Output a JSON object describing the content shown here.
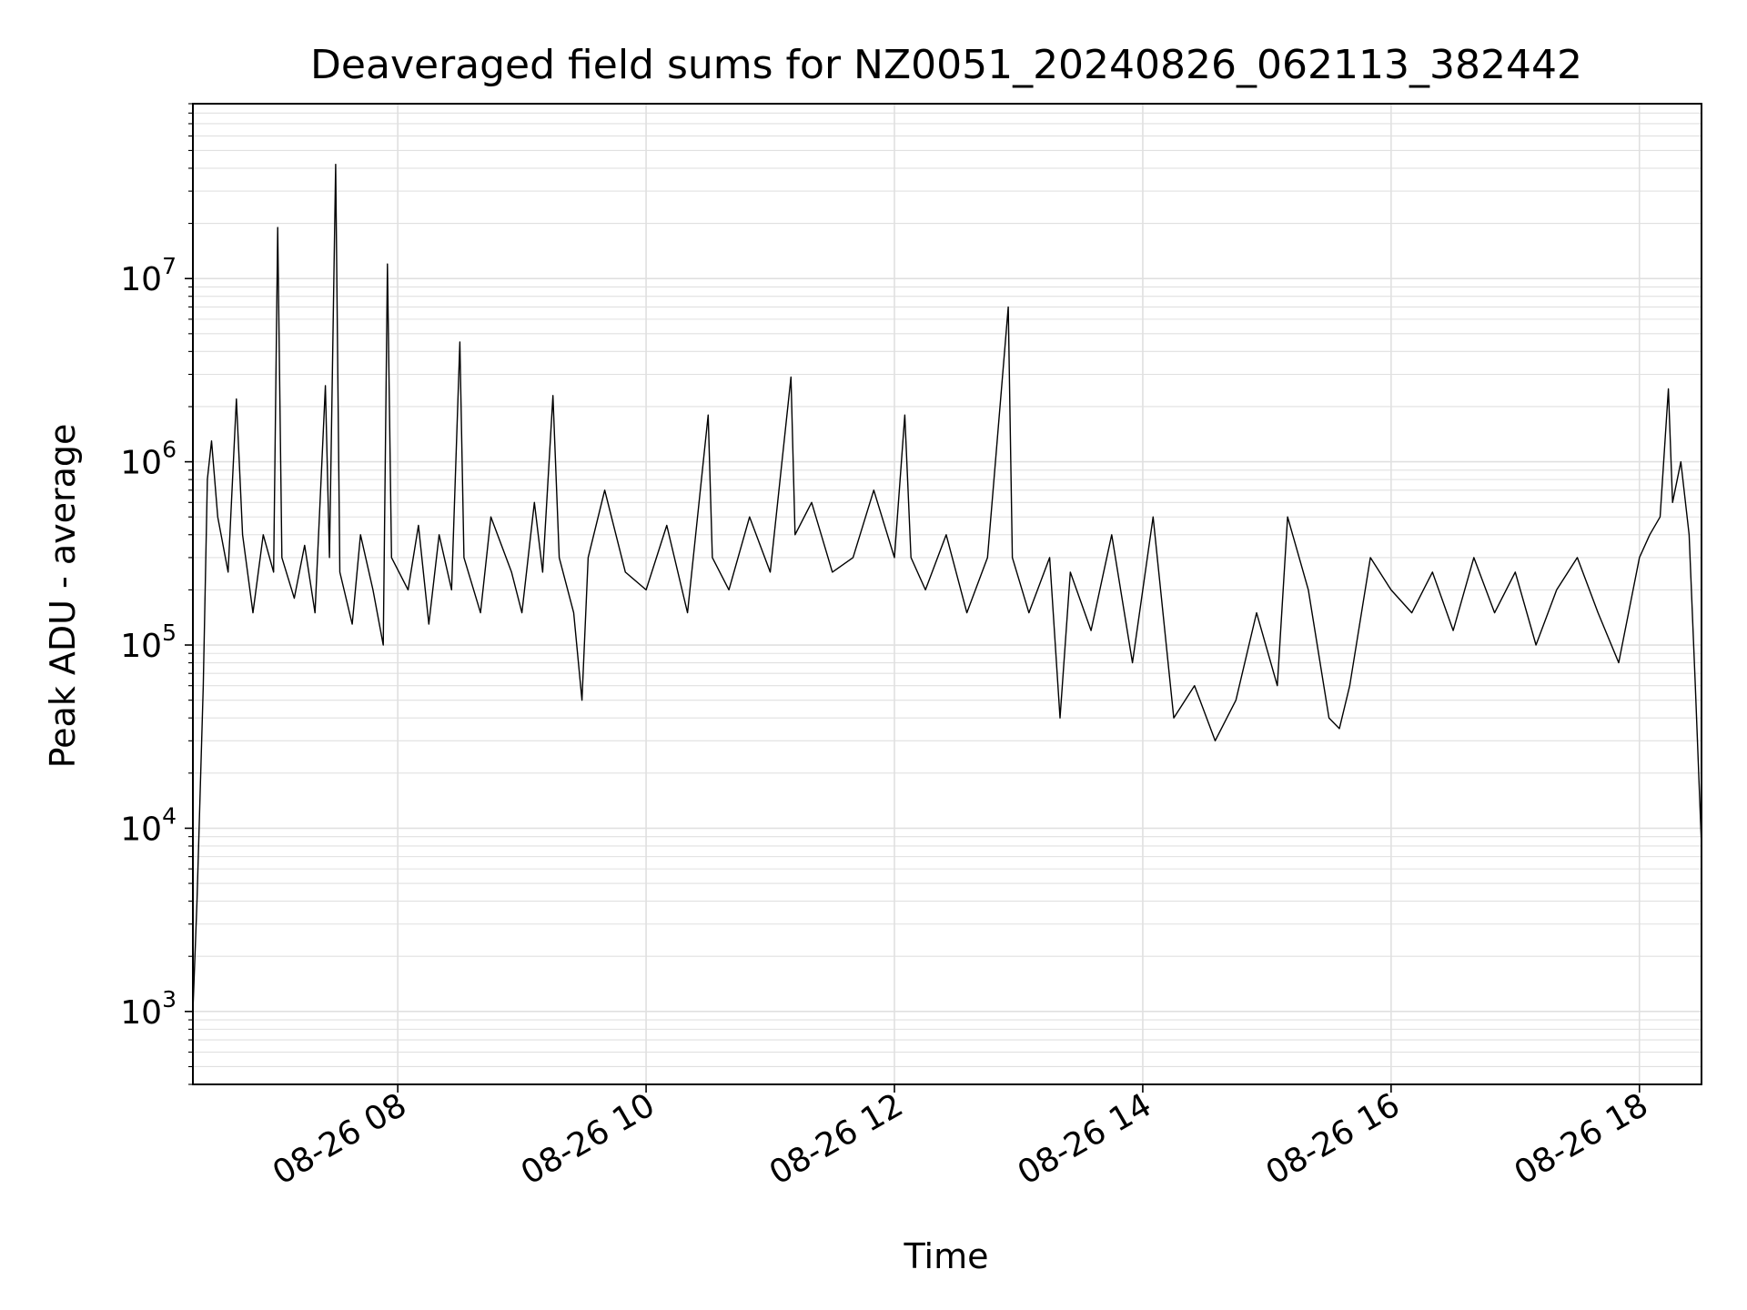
{
  "chart_data": {
    "type": "line",
    "title": "Deaveraged field sums for NZ0051_20240826_062113_382442",
    "xlabel": "Time",
    "ylabel": "Peak ADU - average",
    "x_is_time": true,
    "xlim": [
      "2024-08-26 06:21",
      "2024-08-26 18:30"
    ],
    "ylim": [
      400,
      90000000
    ],
    "y_scale": "log",
    "grid": true,
    "grid_minor": true,
    "colors": {
      "line": "#000000",
      "grid": "#e0e0e0",
      "axes": "#000000"
    },
    "x_ticks": [
      {
        "label": "08-26 08",
        "value": "2024-08-26 08:00"
      },
      {
        "label": "08-26 10",
        "value": "2024-08-26 10:00"
      },
      {
        "label": "08-26 12",
        "value": "2024-08-26 12:00"
      },
      {
        "label": "08-26 14",
        "value": "2024-08-26 14:00"
      },
      {
        "label": "08-26 16",
        "value": "2024-08-26 16:00"
      },
      {
        "label": "08-26 18",
        "value": "2024-08-26 18:00"
      }
    ],
    "y_ticks": [
      {
        "base": "10",
        "exp": "3",
        "value": 1000
      },
      {
        "base": "10",
        "exp": "4",
        "value": 10000
      },
      {
        "base": "10",
        "exp": "5",
        "value": 100000
      },
      {
        "base": "10",
        "exp": "6",
        "value": 1000000
      },
      {
        "base": "10",
        "exp": "7",
        "value": 10000000
      }
    ],
    "series": [
      {
        "points": [
          [
            "2024-08-26 06:21",
            1000
          ],
          [
            "2024-08-26 06:23",
            4000
          ],
          [
            "2024-08-26 06:26",
            60000
          ],
          [
            "2024-08-26 06:28",
            800000
          ],
          [
            "2024-08-26 06:30",
            1300000
          ],
          [
            "2024-08-26 06:33",
            500000
          ],
          [
            "2024-08-26 06:38",
            250000
          ],
          [
            "2024-08-26 06:42",
            2200000
          ],
          [
            "2024-08-26 06:45",
            400000
          ],
          [
            "2024-08-26 06:50",
            150000
          ],
          [
            "2024-08-26 06:55",
            400000
          ],
          [
            "2024-08-26 07:00",
            250000
          ],
          [
            "2024-08-26 07:02",
            19000000
          ],
          [
            "2024-08-26 07:04",
            300000
          ],
          [
            "2024-08-26 07:10",
            180000
          ],
          [
            "2024-08-26 07:15",
            350000
          ],
          [
            "2024-08-26 07:20",
            150000
          ],
          [
            "2024-08-26 07:25",
            2600000
          ],
          [
            "2024-08-26 07:27",
            300000
          ],
          [
            "2024-08-26 07:30",
            42000000
          ],
          [
            "2024-08-26 07:32",
            250000
          ],
          [
            "2024-08-26 07:38",
            130000
          ],
          [
            "2024-08-26 07:42",
            400000
          ],
          [
            "2024-08-26 07:48",
            200000
          ],
          [
            "2024-08-26 07:53",
            100000
          ],
          [
            "2024-08-26 07:55",
            12000000
          ],
          [
            "2024-08-26 07:57",
            300000
          ],
          [
            "2024-08-26 08:05",
            200000
          ],
          [
            "2024-08-26 08:10",
            450000
          ],
          [
            "2024-08-26 08:15",
            130000
          ],
          [
            "2024-08-26 08:20",
            400000
          ],
          [
            "2024-08-26 08:26",
            200000
          ],
          [
            "2024-08-26 08:30",
            4500000
          ],
          [
            "2024-08-26 08:32",
            300000
          ],
          [
            "2024-08-26 08:40",
            150000
          ],
          [
            "2024-08-26 08:45",
            500000
          ],
          [
            "2024-08-26 08:55",
            250000
          ],
          [
            "2024-08-26 09:00",
            150000
          ],
          [
            "2024-08-26 09:06",
            600000
          ],
          [
            "2024-08-26 09:10",
            250000
          ],
          [
            "2024-08-26 09:15",
            2300000
          ],
          [
            "2024-08-26 09:18",
            300000
          ],
          [
            "2024-08-26 09:25",
            150000
          ],
          [
            "2024-08-26 09:29",
            50000
          ],
          [
            "2024-08-26 09:32",
            300000
          ],
          [
            "2024-08-26 09:40",
            700000
          ],
          [
            "2024-08-26 09:50",
            250000
          ],
          [
            "2024-08-26 10:00",
            200000
          ],
          [
            "2024-08-26 10:10",
            450000
          ],
          [
            "2024-08-26 10:20",
            150000
          ],
          [
            "2024-08-26 10:30",
            1800000
          ],
          [
            "2024-08-26 10:32",
            300000
          ],
          [
            "2024-08-26 10:40",
            200000
          ],
          [
            "2024-08-26 10:50",
            500000
          ],
          [
            "2024-08-26 11:00",
            250000
          ],
          [
            "2024-08-26 11:10",
            2900000
          ],
          [
            "2024-08-26 11:12",
            400000
          ],
          [
            "2024-08-26 11:20",
            600000
          ],
          [
            "2024-08-26 11:30",
            250000
          ],
          [
            "2024-08-26 11:40",
            300000
          ],
          [
            "2024-08-26 11:50",
            700000
          ],
          [
            "2024-08-26 12:00",
            300000
          ],
          [
            "2024-08-26 12:05",
            1800000
          ],
          [
            "2024-08-26 12:08",
            300000
          ],
          [
            "2024-08-26 12:15",
            200000
          ],
          [
            "2024-08-26 12:25",
            400000
          ],
          [
            "2024-08-26 12:35",
            150000
          ],
          [
            "2024-08-26 12:45",
            300000
          ],
          [
            "2024-08-26 12:55",
            7000000
          ],
          [
            "2024-08-26 12:57",
            300000
          ],
          [
            "2024-08-26 13:05",
            150000
          ],
          [
            "2024-08-26 13:15",
            300000
          ],
          [
            "2024-08-26 13:20",
            40000
          ],
          [
            "2024-08-26 13:25",
            250000
          ],
          [
            "2024-08-26 13:35",
            120000
          ],
          [
            "2024-08-26 13:45",
            400000
          ],
          [
            "2024-08-26 13:55",
            80000
          ],
          [
            "2024-08-26 14:05",
            500000
          ],
          [
            "2024-08-26 14:15",
            40000
          ],
          [
            "2024-08-26 14:25",
            60000
          ],
          [
            "2024-08-26 14:35",
            30000
          ],
          [
            "2024-08-26 14:45",
            50000
          ],
          [
            "2024-08-26 14:55",
            150000
          ],
          [
            "2024-08-26 15:05",
            60000
          ],
          [
            "2024-08-26 15:10",
            500000
          ],
          [
            "2024-08-26 15:20",
            200000
          ],
          [
            "2024-08-26 15:30",
            40000
          ],
          [
            "2024-08-26 15:35",
            35000
          ],
          [
            "2024-08-26 15:40",
            60000
          ],
          [
            "2024-08-26 15:50",
            300000
          ],
          [
            "2024-08-26 16:00",
            200000
          ],
          [
            "2024-08-26 16:10",
            150000
          ],
          [
            "2024-08-26 16:20",
            250000
          ],
          [
            "2024-08-26 16:30",
            120000
          ],
          [
            "2024-08-26 16:40",
            300000
          ],
          [
            "2024-08-26 16:50",
            150000
          ],
          [
            "2024-08-26 17:00",
            250000
          ],
          [
            "2024-08-26 17:10",
            100000
          ],
          [
            "2024-08-26 17:20",
            200000
          ],
          [
            "2024-08-26 17:30",
            300000
          ],
          [
            "2024-08-26 17:40",
            150000
          ],
          [
            "2024-08-26 17:50",
            80000
          ],
          [
            "2024-08-26 18:00",
            300000
          ],
          [
            "2024-08-26 18:05",
            400000
          ],
          [
            "2024-08-26 18:10",
            500000
          ],
          [
            "2024-08-26 18:14",
            2500000
          ],
          [
            "2024-08-26 18:16",
            600000
          ],
          [
            "2024-08-26 18:20",
            1000000
          ],
          [
            "2024-08-26 18:24",
            400000
          ],
          [
            "2024-08-26 18:27",
            60000
          ],
          [
            "2024-08-26 18:30",
            8000
          ]
        ]
      }
    ]
  }
}
